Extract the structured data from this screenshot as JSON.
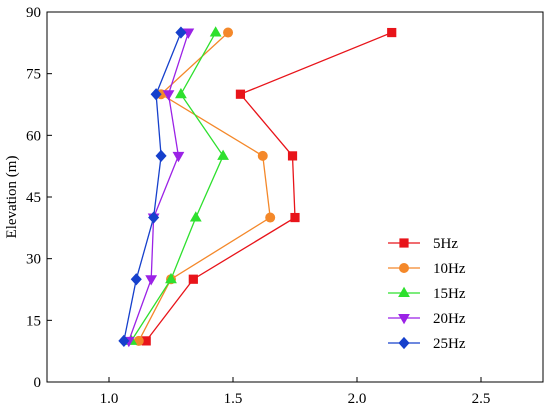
{
  "chart_data": {
    "type": "line",
    "title": "",
    "xlabel": "",
    "ylabel": "Elevation (m)",
    "xlim": [
      0.75,
      2.75
    ],
    "ylim": [
      0,
      90
    ],
    "xticks": [
      "1.0",
      "1.5",
      "2.0",
      "2.5"
    ],
    "xtick_values": [
      1.0,
      1.5,
      2.0,
      2.5
    ],
    "yticks": [
      "0",
      "15",
      "30",
      "45",
      "60",
      "75",
      "90"
    ],
    "ytick_values": [
      0,
      15,
      30,
      45,
      60,
      75,
      90
    ],
    "grid": false,
    "legend_position": "center-right",
    "series": [
      {
        "name": "5Hz",
        "color": "#e8141a",
        "marker": "square",
        "points": [
          [
            1.15,
            10
          ],
          [
            1.34,
            25
          ],
          [
            1.75,
            40
          ],
          [
            1.74,
            55
          ],
          [
            1.53,
            70
          ],
          [
            2.14,
            85
          ]
        ]
      },
      {
        "name": "10Hz",
        "color": "#f4882a",
        "marker": "circle",
        "points": [
          [
            1.12,
            10
          ],
          [
            1.25,
            25
          ],
          [
            1.65,
            40
          ],
          [
            1.62,
            55
          ],
          [
            1.21,
            70
          ],
          [
            1.48,
            85
          ]
        ]
      },
      {
        "name": "15Hz",
        "color": "#2ee02e",
        "marker": "triangle-up",
        "points": [
          [
            1.09,
            10
          ],
          [
            1.25,
            25
          ],
          [
            1.35,
            40
          ],
          [
            1.46,
            55
          ],
          [
            1.29,
            70
          ],
          [
            1.43,
            85
          ]
        ]
      },
      {
        "name": "20Hz",
        "color": "#9b22e6",
        "marker": "triangle-down",
        "points": [
          [
            1.08,
            10
          ],
          [
            1.17,
            25
          ],
          [
            1.18,
            40
          ],
          [
            1.28,
            55
          ],
          [
            1.24,
            70
          ],
          [
            1.32,
            85
          ]
        ]
      },
      {
        "name": "25Hz",
        "color": "#1640cc",
        "marker": "diamond",
        "points": [
          [
            1.06,
            10
          ],
          [
            1.11,
            25
          ],
          [
            1.18,
            40
          ],
          [
            1.21,
            55
          ],
          [
            1.19,
            70
          ],
          [
            1.29,
            85
          ]
        ]
      }
    ]
  }
}
